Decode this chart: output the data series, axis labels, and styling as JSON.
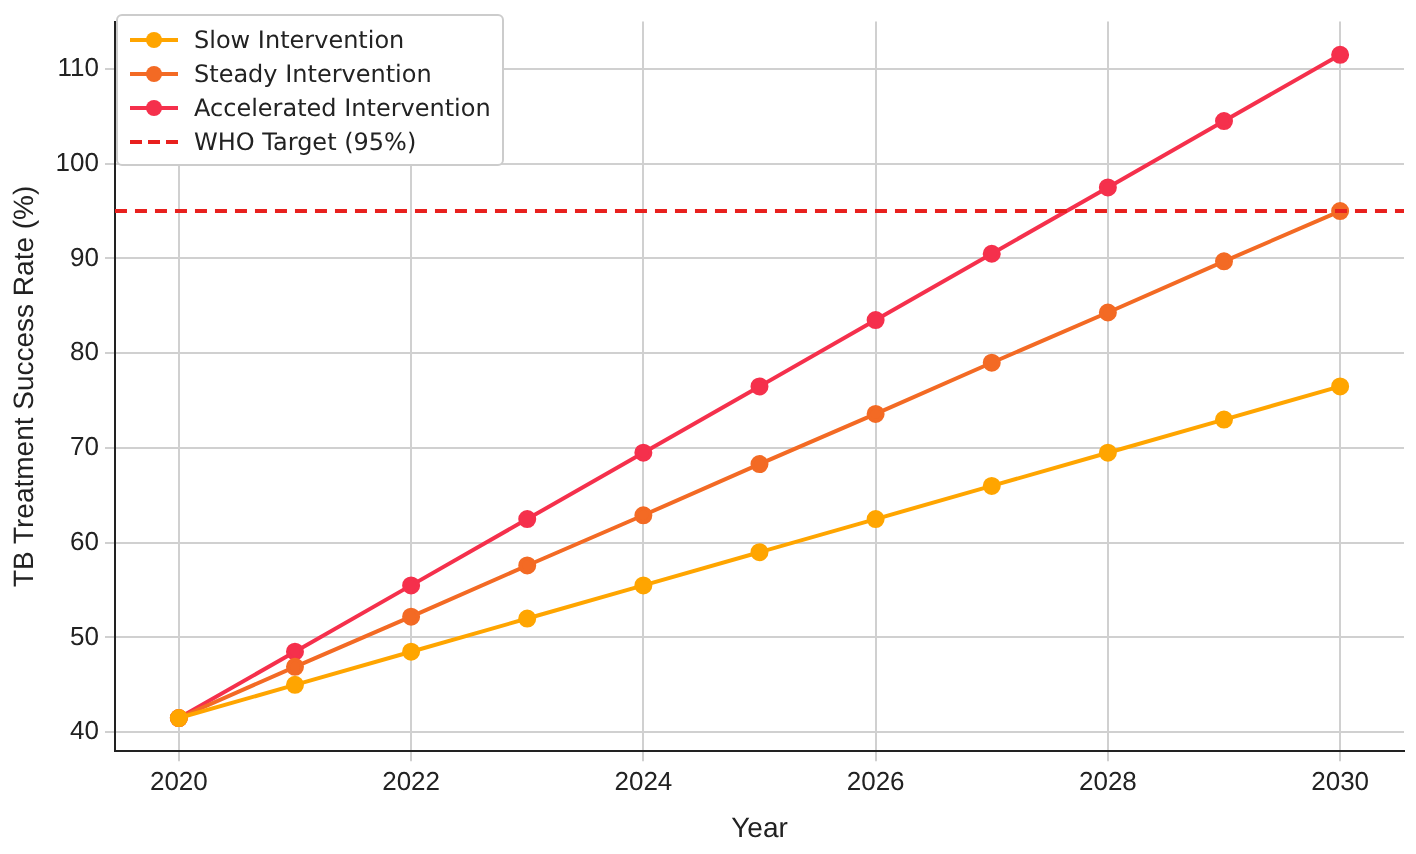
{
  "chart_data": {
    "type": "line",
    "xlabel": "Year",
    "ylabel": "TB Treatment Success Rate (%)",
    "x": [
      2020,
      2021,
      2022,
      2023,
      2024,
      2025,
      2026,
      2027,
      2028,
      2029,
      2030
    ],
    "series": [
      {
        "name": "Slow Intervention",
        "color": "#ffa500",
        "values": [
          41.5,
          45,
          48.5,
          52,
          55.5,
          59,
          62.5,
          66,
          69.5,
          73,
          76.5
        ]
      },
      {
        "name": "Steady Intervention",
        "color": "#f36a24",
        "values": [
          41.5,
          46.9,
          52.2,
          57.6,
          62.9,
          68.3,
          73.6,
          79,
          84.3,
          89.7,
          95
        ]
      },
      {
        "name": "Accelerated Intervention",
        "color": "#f5304c",
        "values": [
          41.5,
          48.5,
          55.5,
          62.5,
          69.5,
          76.5,
          83.5,
          90.5,
          97.5,
          104.5,
          111.5
        ]
      }
    ],
    "ref_lines": [
      {
        "axis": "y",
        "value": 95,
        "label": "WHO Target (95%)",
        "color": "#e8201e",
        "line_style": "dashed"
      }
    ],
    "xlim": [
      2019.45,
      2030.55
    ],
    "ylim": [
      38,
      115
    ],
    "xticks": [
      2020,
      2022,
      2024,
      2026,
      2028,
      2030
    ],
    "yticks": [
      40,
      50,
      60,
      70,
      80,
      90,
      100,
      110
    ],
    "grid": true,
    "legend": "top left",
    "marker": "circle",
    "line_style": "solid"
  }
}
